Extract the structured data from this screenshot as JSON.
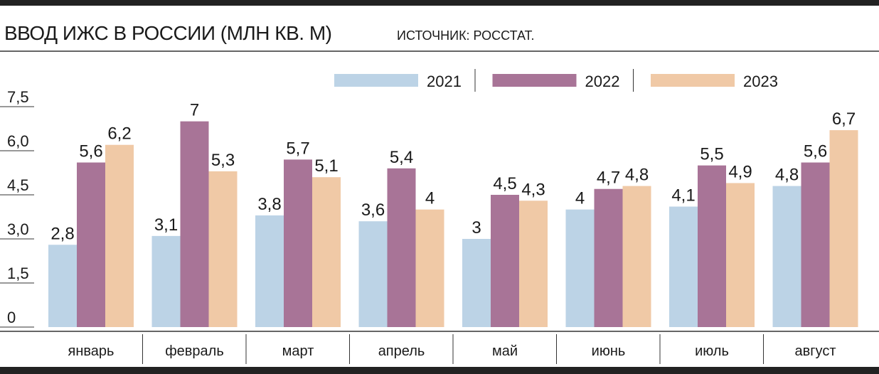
{
  "chart_data": {
    "type": "bar",
    "title": "ВВОД ИЖС В РОССИИ (МЛН КВ. М)",
    "subtitle": "ИСТОЧНИК: РОССТАТ.",
    "categories": [
      "январь",
      "февраль",
      "март",
      "апрель",
      "май",
      "июнь",
      "июль",
      "август"
    ],
    "series": [
      {
        "name": "2021",
        "color": "#bcd3e6",
        "values": [
          2.8,
          3.1,
          3.8,
          3.6,
          3,
          4,
          4.1,
          4.8
        ],
        "value_labels": [
          "2,8",
          "3,1",
          "3,8",
          "3,6",
          "3",
          "4",
          "4,1",
          "4,8"
        ]
      },
      {
        "name": "2022",
        "color": "#a87497",
        "values": [
          5.6,
          7,
          5.7,
          5.4,
          4.5,
          4.7,
          5.5,
          5.6
        ],
        "value_labels": [
          "5,6",
          "7",
          "5,7",
          "5,4",
          "4,5",
          "4,7",
          "5,5",
          "5,6"
        ]
      },
      {
        "name": "2023",
        "color": "#f0c9a6",
        "values": [
          6.2,
          5.3,
          5.1,
          4,
          4.3,
          4.8,
          4.9,
          6.7
        ],
        "value_labels": [
          "6,2",
          "5,3",
          "5,1",
          "4",
          "4,3",
          "4,8",
          "4,9",
          "6,7"
        ]
      }
    ],
    "ylim": [
      0,
      7.5
    ],
    "yticks": [
      0,
      {
        "value": 1.5,
        "label": "1,5"
      },
      {
        "value": 3,
        "label": "3,0"
      },
      {
        "value": 4.5,
        "label": "4,5"
      },
      {
        "value": 6,
        "label": "6,0"
      },
      {
        "value": 7.5,
        "label": "7,5"
      }
    ]
  }
}
